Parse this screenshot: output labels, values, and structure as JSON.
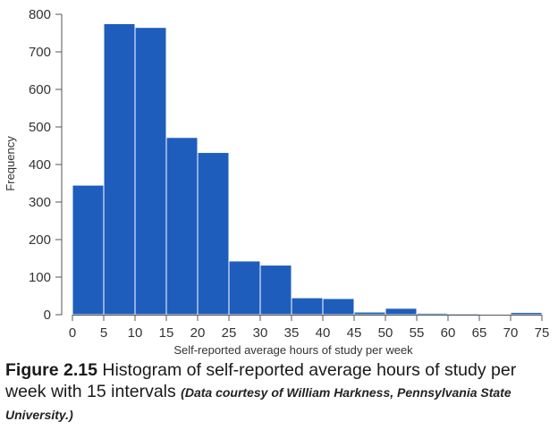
{
  "chart_data": {
    "type": "bar",
    "xlabel": "Self-reported average hours of study per week",
    "ylabel": "Frequency",
    "bin_edges": [
      0,
      5,
      10,
      15,
      20,
      25,
      30,
      35,
      40,
      45,
      50,
      55,
      60,
      65,
      70,
      75
    ],
    "values": [
      345,
      775,
      765,
      472,
      432,
      143,
      132,
      45,
      43,
      7,
      17,
      4,
      3,
      1,
      6
    ],
    "xlim": [
      0,
      75
    ],
    "ylim": [
      0,
      800
    ],
    "x_ticks": [
      0,
      5,
      10,
      15,
      20,
      25,
      30,
      35,
      40,
      45,
      50,
      55,
      60,
      65,
      70,
      75
    ],
    "y_ticks": [
      0,
      100,
      200,
      300,
      400,
      500,
      600,
      700,
      800
    ],
    "bar_color": "#1f5dbd",
    "grid": false
  },
  "caption": {
    "figure_number": "Figure 2.15",
    "text": " Histogram of self-reported average hours of study per week with 15 intervals ",
    "credit": "(Data courtesy of William Harkness, Pennsylvania State University.)"
  }
}
